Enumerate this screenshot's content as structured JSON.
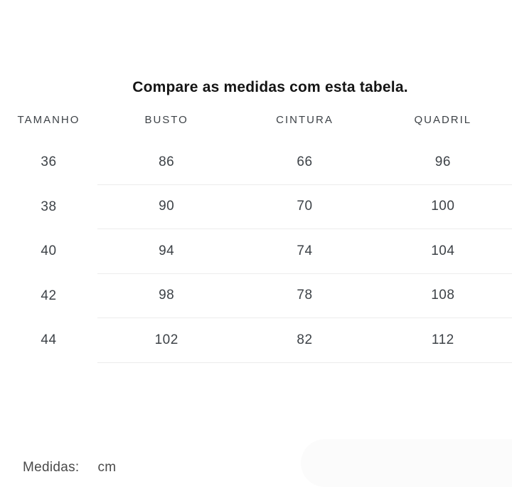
{
  "title": "Compare as medidas com esta tabela.",
  "table": {
    "columns": [
      "TAMANHO",
      "BUSTO",
      "CINTURA",
      "QUADRIL"
    ],
    "rows": [
      [
        "36",
        "86",
        "66",
        "96"
      ],
      [
        "38",
        "90",
        "70",
        "100"
      ],
      [
        "40",
        "94",
        "74",
        "104"
      ],
      [
        "42",
        "98",
        "78",
        "108"
      ],
      [
        "44",
        "102",
        "82",
        "112"
      ]
    ]
  },
  "footer": {
    "label": "Medidas:",
    "unit": "cm"
  },
  "colors": {
    "background": "#ffffff",
    "title_text": "#151515",
    "header_text": "#3d4247",
    "cell_text": "#3d4247",
    "divider": "#ececec",
    "footer_text": "#4a4a4a",
    "pill_background": "#fbfbfb"
  }
}
